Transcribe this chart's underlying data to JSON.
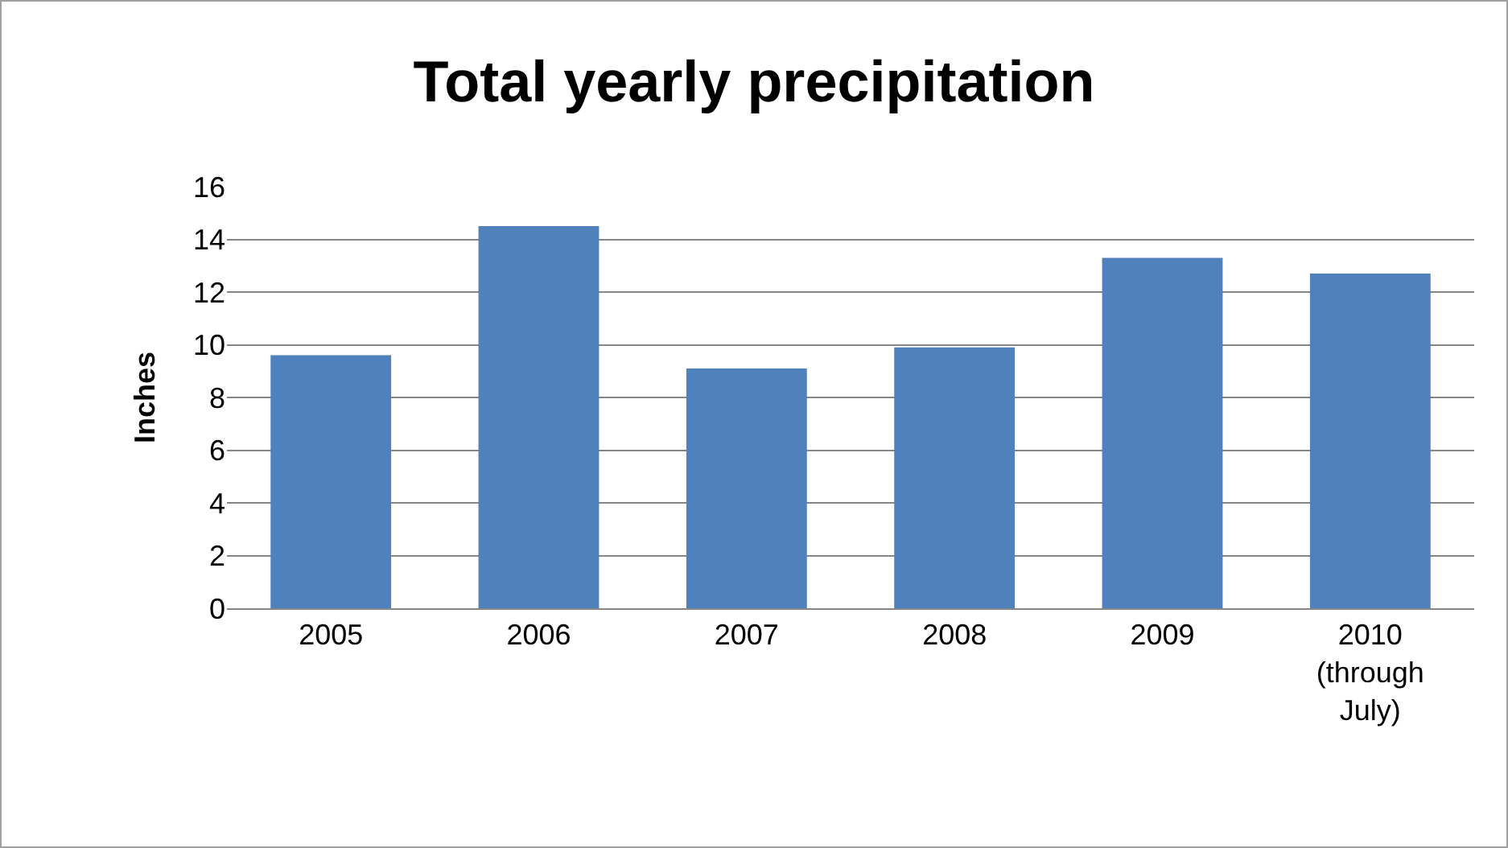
{
  "chart_data": {
    "type": "bar",
    "title": "Total yearly precipitation",
    "ylabel": "Inches",
    "categories": [
      "2005",
      "2006",
      "2007",
      "2008",
      "2009",
      "2010 (through July)"
    ],
    "values": [
      9.6,
      14.5,
      9.1,
      9.9,
      13.3,
      12.7
    ],
    "color": "#4f81bd",
    "ylim": [
      0,
      16
    ],
    "yticks": [
      0,
      2,
      4,
      6,
      8,
      10,
      12,
      14,
      16
    ],
    "grid": "y",
    "legend": false
  }
}
